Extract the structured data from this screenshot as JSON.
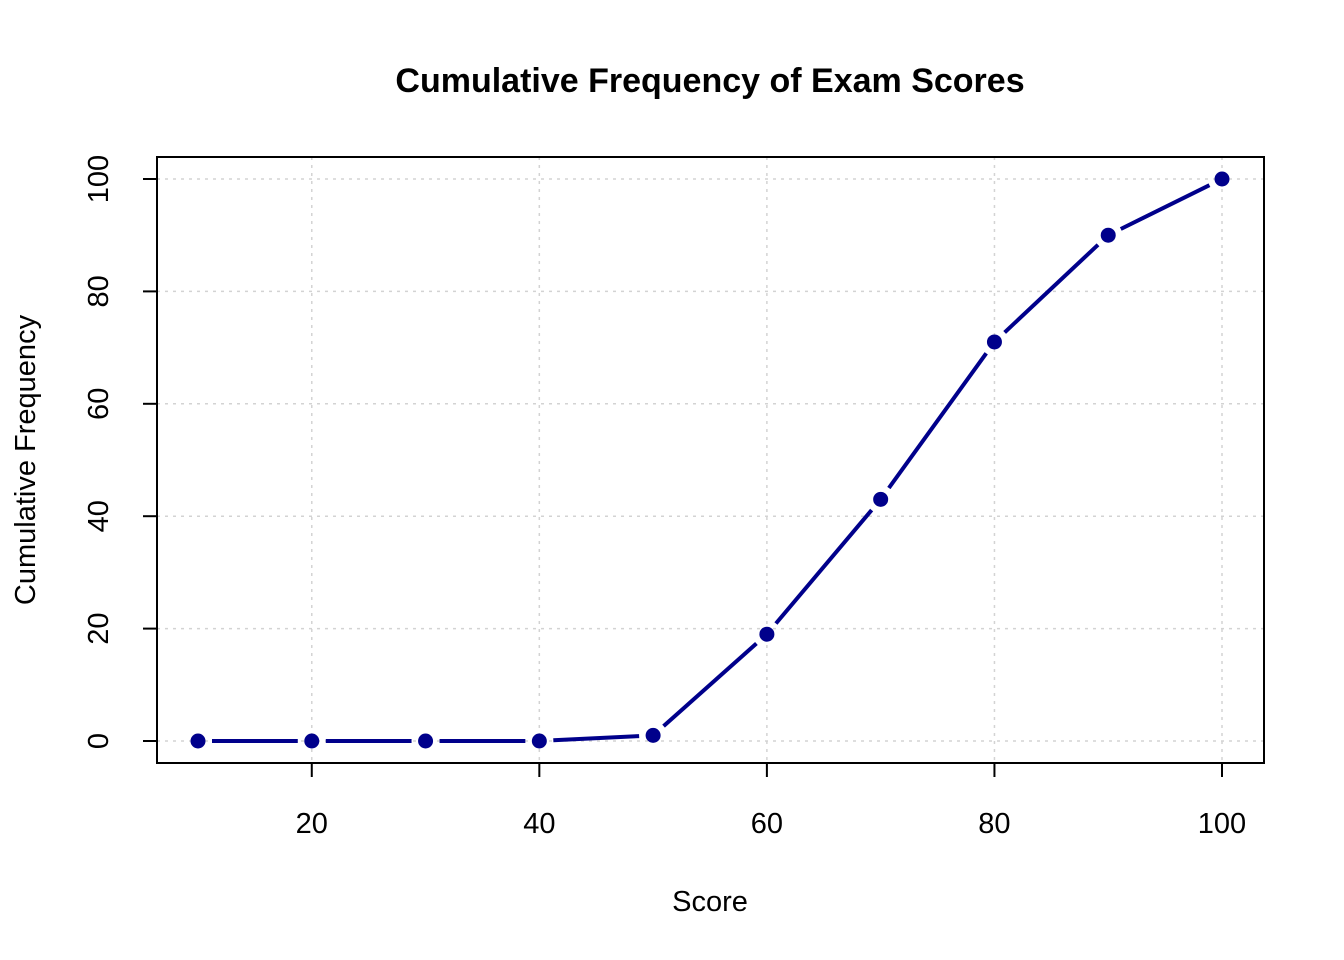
{
  "chart_data": {
    "type": "line",
    "title": "Cumulative Frequency of Exam Scores",
    "xlabel": "Score",
    "ylabel": "Cumulative Frequency",
    "x": [
      10,
      20,
      30,
      40,
      50,
      60,
      70,
      80,
      90,
      100
    ],
    "series": [
      {
        "values": [
          0,
          0,
          0,
          0,
          1,
          19,
          43,
          71,
          90,
          100
        ]
      }
    ],
    "xlim": [
      10,
      100
    ],
    "ylim": [
      0,
      100
    ],
    "xticks": [
      20,
      40,
      60,
      80,
      100
    ],
    "yticks": [
      0,
      20,
      40,
      60,
      80,
      100
    ],
    "grid": true,
    "markers": "filled-circle",
    "line_color": "#00008B",
    "grid_color": "#D3D3D3"
  }
}
